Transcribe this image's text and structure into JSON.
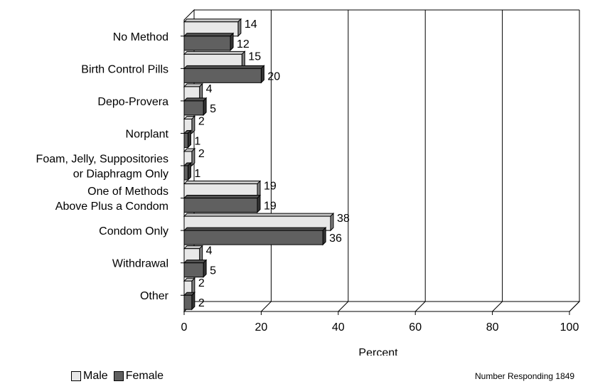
{
  "chart_data": {
    "type": "bar",
    "orientation": "horizontal",
    "categories": [
      [
        "No Method"
      ],
      [
        "Birth Control Pills"
      ],
      [
        "Depo-Provera"
      ],
      [
        "Norplant"
      ],
      [
        "Foam, Jelly, Suppositories",
        "or Diaphragm Only"
      ],
      [
        "One of Methods",
        "Above Plus a Condom"
      ],
      [
        "Condom Only"
      ],
      [
        "Withdrawal"
      ],
      [
        "Other"
      ]
    ],
    "series": [
      {
        "name": "Male",
        "values": [
          14,
          15,
          4,
          2,
          2,
          19,
          38,
          4,
          2
        ],
        "color": "#e8e8e8"
      },
      {
        "name": "Female",
        "values": [
          12,
          20,
          5,
          1,
          1,
          19,
          36,
          5,
          2
        ],
        "color": "#606060"
      }
    ],
    "xlabel": "Percent",
    "xlim": [
      0,
      100
    ],
    "xticks": [
      0,
      20,
      40,
      60,
      80,
      100
    ],
    "grid": true,
    "legend_position": "bottom-left"
  },
  "footer_note": "Number Responding 1849"
}
